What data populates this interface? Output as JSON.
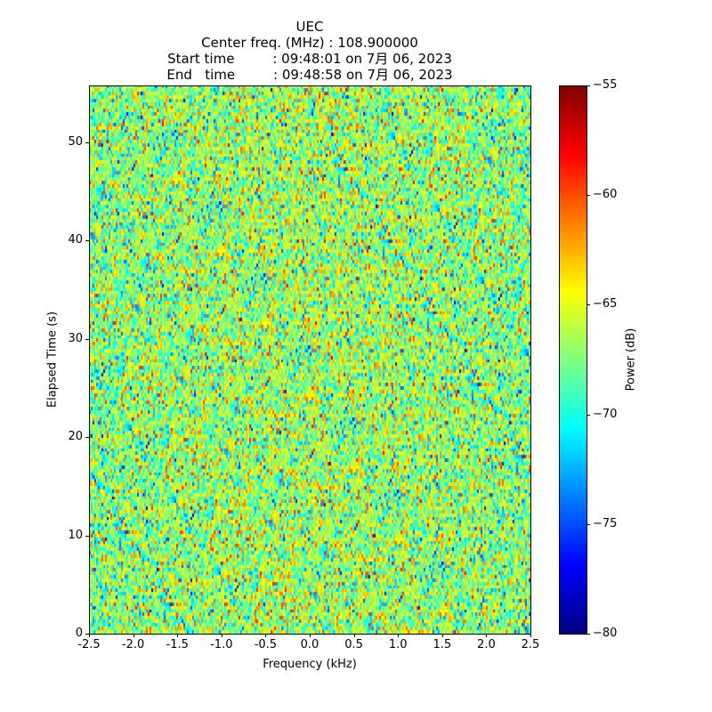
{
  "chart_data": {
    "type": "heatmap",
    "title_lines": [
      "UEC",
      "Center freq. (MHz) : 108.900000",
      "Start time         : 09:48:01 on 7月 06, 2023",
      "End   time         : 09:48:58 on 7月 06, 2023"
    ],
    "xlabel": "Frequency (kHz)",
    "ylabel": "Elapsed Time (s)",
    "xlim": [
      -2.5,
      2.5
    ],
    "ylim": [
      0,
      55.8
    ],
    "xticks": [
      -2.5,
      -2.0,
      -1.5,
      -1.0,
      -0.5,
      0.0,
      0.5,
      1.0,
      1.5,
      2.0,
      2.5
    ],
    "xtick_labels": [
      "-2.5",
      "-2.0",
      "-1.5",
      "-1.0",
      "-0.5",
      "0.0",
      "0.5",
      "1.0",
      "1.5",
      "2.0",
      "2.5"
    ],
    "yticks": [
      0,
      10,
      20,
      30,
      40,
      50
    ],
    "ytick_labels": [
      "0",
      "10",
      "20",
      "30",
      "40",
      "50"
    ],
    "colormap": "jet",
    "colorbar": {
      "label": "Power (dB)",
      "range": [
        -80,
        -55
      ],
      "ticks": [
        -80,
        -75,
        -70,
        -65,
        -60,
        -55
      ],
      "tick_labels": [
        "−80",
        "−75",
        "−70",
        "−65",
        "−60",
        "−55"
      ]
    },
    "grid": false,
    "noise_model": {
      "freq_bins": 248,
      "time_bins": 160,
      "mean_db": -67.5,
      "std_db": 3.2
    }
  }
}
